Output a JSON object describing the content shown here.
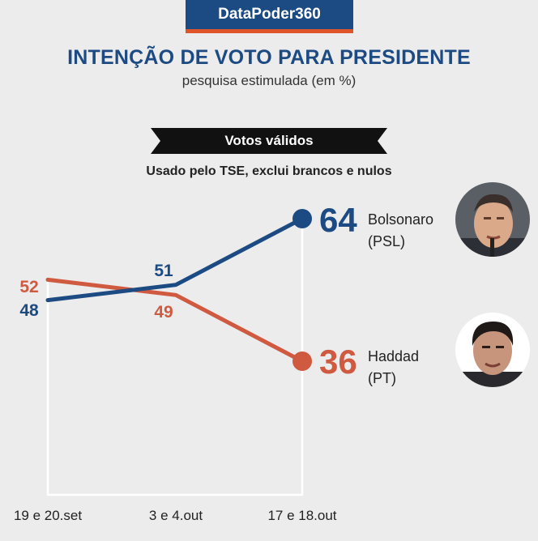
{
  "header": {
    "brand": "DataPoder360",
    "title": "INTENÇÃO DE VOTO PARA PRESIDENTE",
    "subtitle": "pesquisa estimulada (em %)",
    "banner": "Votos válidos",
    "note": "Usado pelo TSE, exclui brancos e nulos"
  },
  "colors": {
    "bolsonaro": "#1c4a82",
    "haddad": "#cf5a3f",
    "banner": "#111111",
    "brand": "#1c4a82",
    "brand_accent": "#e0542a"
  },
  "chart_data": {
    "type": "line",
    "title": "INTENÇÃO DE VOTO PARA PRESIDENTE",
    "subtitle": "pesquisa estimulada (em %)",
    "categories": [
      "19 e 20.set",
      "3 e 4.out",
      "17 e 18.out"
    ],
    "series": [
      {
        "name": "Bolsonaro",
        "party": "(PSL)",
        "values": [
          48,
          51,
          64
        ]
      },
      {
        "name": "Haddad",
        "party": "(PT)",
        "values": [
          52,
          49,
          36
        ]
      }
    ],
    "xlabel": "",
    "ylabel": "",
    "ylim": [
      0,
      70
    ],
    "grid": false,
    "legend": "right, end-of-line labels"
  },
  "icons": {
    "bolsonaro_photo": "bolsonaro-avatar-icon",
    "haddad_photo": "haddad-avatar-icon"
  }
}
